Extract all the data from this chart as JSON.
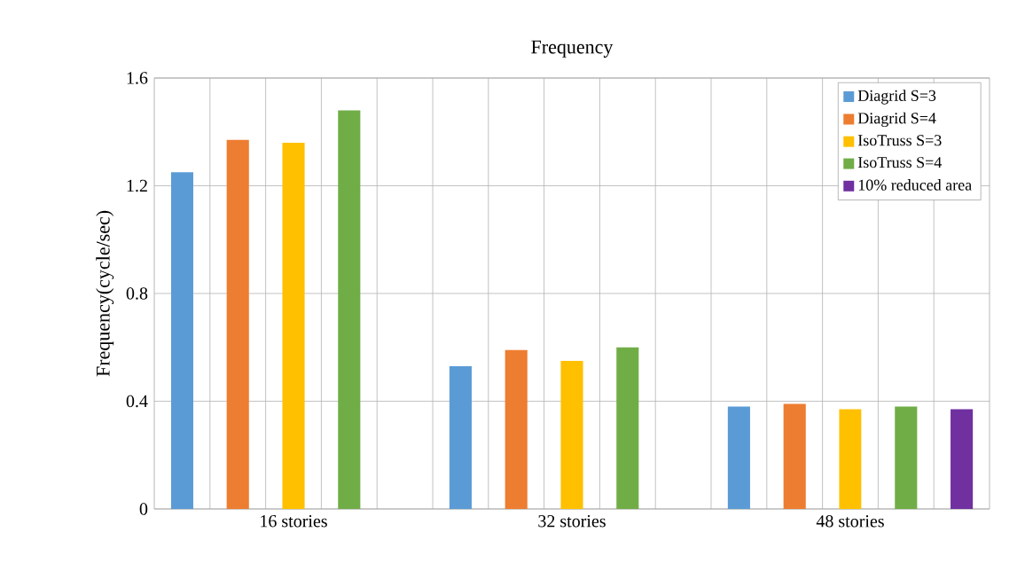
{
  "chart_data": {
    "type": "bar",
    "title": "Frequency",
    "ylabel": "Frequency(cycle/sec)",
    "categories": [
      "16 stories",
      "32 stories",
      "48 stories"
    ],
    "series": [
      {
        "name": "Diagrid  S=3",
        "color": "#5b9bd5",
        "values": [
          1.25,
          0.53,
          0.38
        ]
      },
      {
        "name": "Diagrid  S=4",
        "color": "#ed7d31",
        "values": [
          1.37,
          0.59,
          0.39
        ]
      },
      {
        "name": "IsoTruss S=3",
        "color": "#ffc000",
        "values": [
          1.36,
          0.55,
          0.37
        ]
      },
      {
        "name": "IsoTruss S=4",
        "color": "#70ad47",
        "values": [
          1.48,
          0.6,
          0.38
        ]
      },
      {
        "name": "10% reduced area",
        "color": "#7030a0",
        "values": [
          null,
          null,
          0.37
        ]
      }
    ],
    "ylim": [
      0,
      1.6
    ],
    "yticks": [
      0,
      0.4,
      0.8,
      1.2,
      1.6
    ],
    "grid": true,
    "legend": "top right"
  }
}
